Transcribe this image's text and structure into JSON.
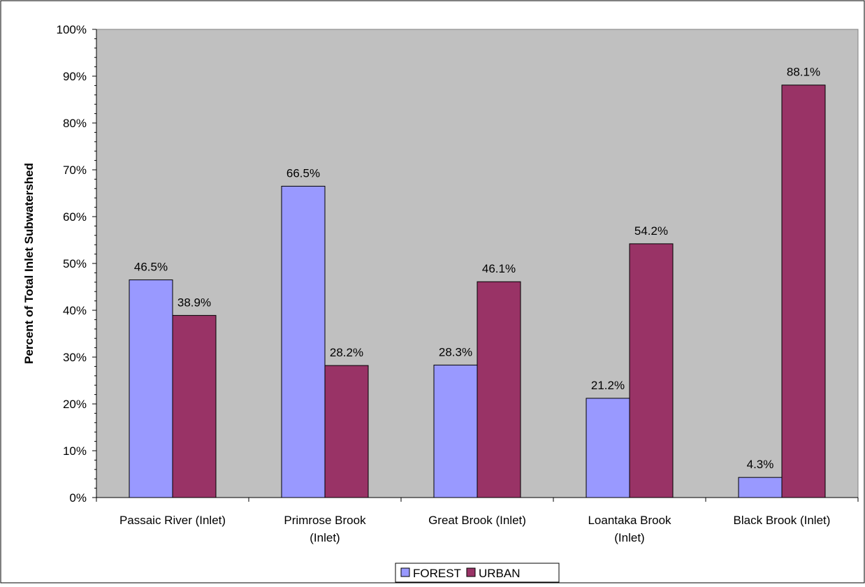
{
  "chart_data": {
    "type": "bar",
    "title": "",
    "xlabel": "",
    "ylabel": "Percent of Total Inlet Subwatershed",
    "ylim": [
      0,
      100
    ],
    "y_ticks": [
      "0%",
      "10%",
      "20%",
      "30%",
      "40%",
      "50%",
      "60%",
      "70%",
      "80%",
      "90%",
      "100%"
    ],
    "categories": [
      [
        "Passaic River (Inlet)"
      ],
      [
        "Primrose Brook",
        "(Inlet)"
      ],
      [
        "Great Brook (Inlet)"
      ],
      [
        "Loantaka Brook",
        "(Inlet)"
      ],
      [
        "Black Brook (Inlet)"
      ]
    ],
    "series": [
      {
        "name": "FOREST",
        "values": [
          46.5,
          66.5,
          28.3,
          21.2,
          4.3
        ],
        "labels": [
          "46.5%",
          "66.5%",
          "28.3%",
          "21.2%",
          "4.3%"
        ],
        "color": "#9999ff"
      },
      {
        "name": "URBAN",
        "values": [
          38.9,
          28.2,
          46.1,
          54.2,
          88.1
        ],
        "labels": [
          "38.9%",
          "28.2%",
          "46.1%",
          "54.2%",
          "88.1%"
        ],
        "color": "#993366"
      }
    ],
    "plot_background": "#c0c0c0",
    "grid": false,
    "legend_position": "bottom"
  }
}
